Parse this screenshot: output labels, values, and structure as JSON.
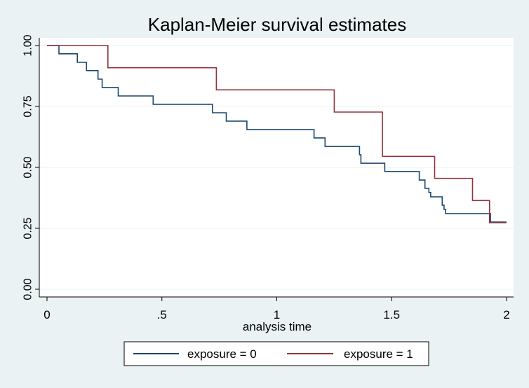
{
  "chart_data": {
    "type": "line",
    "step": true,
    "title": "Kaplan-Meier survival estimates",
    "xlabel": "analysis time",
    "ylabel": "",
    "xlim": [
      0,
      2
    ],
    "ylim": [
      0,
      1
    ],
    "x_ticks": [
      {
        "value": 0,
        "label": "0"
      },
      {
        "value": 0.5,
        "label": ".5"
      },
      {
        "value": 1,
        "label": "1"
      },
      {
        "value": 1.5,
        "label": "1.5"
      },
      {
        "value": 2,
        "label": "2"
      }
    ],
    "y_ticks": [
      {
        "value": 0,
        "label": "0.00"
      },
      {
        "value": 0.25,
        "label": "0.25"
      },
      {
        "value": 0.5,
        "label": "0.50"
      },
      {
        "value": 0.75,
        "label": "0.75"
      },
      {
        "value": 1,
        "label": "1.00"
      }
    ],
    "grid": true,
    "legend_position": "bottom",
    "series": [
      {
        "name": "exposure = 0",
        "color": "#1a476f",
        "x": [
          0,
          0.052,
          0.132,
          0.172,
          0.222,
          0.24,
          0.31,
          0.462,
          0.72,
          0.78,
          0.87,
          1.162,
          1.21,
          1.36,
          1.366,
          1.47,
          1.62,
          1.645,
          1.662,
          1.67,
          1.72,
          1.728,
          1.735,
          1.93,
          2.0
        ],
        "y": [
          1.0,
          0.966,
          0.931,
          0.897,
          0.862,
          0.828,
          0.793,
          0.759,
          0.724,
          0.69,
          0.655,
          0.621,
          0.586,
          0.552,
          0.517,
          0.483,
          0.448,
          0.414,
          0.397,
          0.379,
          0.345,
          0.328,
          0.31,
          0.276,
          0.276
        ]
      },
      {
        "name": "exposure = 1",
        "color": "#90353b",
        "x": [
          0,
          0.265,
          0.737,
          1.25,
          1.46,
          1.687,
          1.852,
          1.926,
          2.0
        ],
        "y": [
          1.0,
          0.909,
          0.818,
          0.727,
          0.545,
          0.455,
          0.364,
          0.273,
          0.273
        ]
      }
    ]
  }
}
